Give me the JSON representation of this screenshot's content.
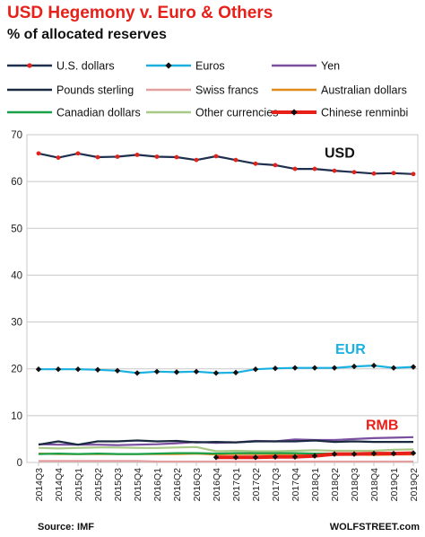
{
  "chart_data": {
    "type": "line",
    "title": "USD Hegemony v. Euro & Others",
    "subtitle": "% of allocated reserves",
    "ylim": [
      0,
      70
    ],
    "yticks": [
      0,
      10,
      20,
      30,
      40,
      50,
      60,
      70
    ],
    "categories": [
      "2014Q3",
      "2014Q4",
      "2015Q1",
      "2015Q2",
      "2015Q3",
      "2015Q4",
      "2016Q1",
      "2016Q2",
      "2016Q3",
      "2016Q4",
      "2017Q1",
      "2017Q2",
      "2017Q3",
      "2017Q4",
      "2018Q1",
      "2018Q2",
      "2018Q3",
      "2018Q4",
      "2019Q1",
      "2019Q2"
    ],
    "legend": [
      "U.S. dollars",
      "Euros",
      "Yen",
      "Pounds sterling",
      "Swiss francs",
      "Australian dollars",
      "Canadian dollars",
      "Other currencies",
      "Chinese renminbi"
    ],
    "series": [
      {
        "name": "U.S. dollars",
        "color": "#1f2f4f",
        "marker": "red-dot",
        "values": [
          66.0,
          65.1,
          66.0,
          65.2,
          65.3,
          65.7,
          65.3,
          65.2,
          64.6,
          65.4,
          64.6,
          63.8,
          63.5,
          62.7,
          62.7,
          62.3,
          62.0,
          61.7,
          61.8,
          61.6
        ]
      },
      {
        "name": "Euros",
        "color": "#1ab0e0",
        "marker": "black-diamond",
        "values": [
          19.9,
          19.9,
          19.9,
          19.8,
          19.6,
          19.1,
          19.4,
          19.3,
          19.4,
          19.1,
          19.2,
          19.9,
          20.1,
          20.2,
          20.2,
          20.2,
          20.5,
          20.7,
          20.2,
          20.4
        ]
      },
      {
        "name": "Yen",
        "color": "#7a4fa0",
        "marker": "none",
        "values": [
          3.9,
          3.8,
          3.8,
          3.8,
          3.7,
          3.8,
          3.9,
          4.1,
          4.4,
          4.2,
          4.3,
          4.6,
          4.5,
          4.9,
          4.8,
          4.8,
          5.0,
          5.2,
          5.3,
          5.4
        ]
      },
      {
        "name": "Pounds sterling",
        "color": "#1a2a40",
        "marker": "none",
        "values": [
          3.8,
          4.5,
          3.8,
          4.5,
          4.5,
          4.7,
          4.5,
          4.6,
          4.3,
          4.4,
          4.3,
          4.5,
          4.5,
          4.5,
          4.7,
          4.4,
          4.5,
          4.4,
          4.4,
          4.4
        ]
      },
      {
        "name": "Swiss francs",
        "color": "#e4a0a0",
        "marker": "none",
        "values": [
          0.3,
          0.3,
          0.3,
          0.3,
          0.3,
          0.3,
          0.2,
          0.2,
          0.2,
          0.2,
          0.2,
          0.2,
          0.2,
          0.2,
          0.2,
          0.2,
          0.2,
          0.2,
          0.2,
          0.2
        ]
      },
      {
        "name": "Australian dollars",
        "color": "#e48a1a",
        "marker": "none",
        "values": [
          1.9,
          1.8,
          1.8,
          1.8,
          1.8,
          1.8,
          1.8,
          1.8,
          1.9,
          1.7,
          1.8,
          1.8,
          1.8,
          1.8,
          1.7,
          1.6,
          1.7,
          1.6,
          1.7,
          1.7
        ]
      },
      {
        "name": "Canadian dollars",
        "color": "#1aa048",
        "marker": "none",
        "values": [
          1.8,
          1.9,
          1.8,
          1.9,
          1.8,
          1.8,
          1.9,
          2.0,
          2.0,
          1.9,
          2.0,
          2.0,
          2.0,
          2.0,
          1.9,
          1.9,
          1.9,
          1.8,
          1.9,
          1.9
        ]
      },
      {
        "name": "Other currencies",
        "color": "#a8c888",
        "marker": "none",
        "values": [
          3.1,
          3.0,
          3.1,
          3.2,
          3.2,
          3.1,
          3.1,
          3.2,
          3.3,
          2.4,
          2.5,
          2.4,
          2.4,
          2.5,
          2.6,
          2.5,
          2.5,
          2.5,
          2.7,
          2.8
        ]
      },
      {
        "name": "Chinese renminbi",
        "color": "#e82018",
        "marker": "black-diamond",
        "values": [
          null,
          null,
          null,
          null,
          null,
          null,
          null,
          null,
          null,
          1.1,
          1.1,
          1.1,
          1.2,
          1.2,
          1.4,
          1.8,
          1.8,
          1.9,
          1.9,
          2.0
        ]
      }
    ],
    "annotations": [
      {
        "text": "USD",
        "color": "#111111"
      },
      {
        "text": "EUR",
        "color": "#1ab0e0"
      },
      {
        "text": "RMB",
        "color": "#e82018"
      }
    ],
    "source": "Source: IMF",
    "brand": "WOLFSTREET.com"
  }
}
